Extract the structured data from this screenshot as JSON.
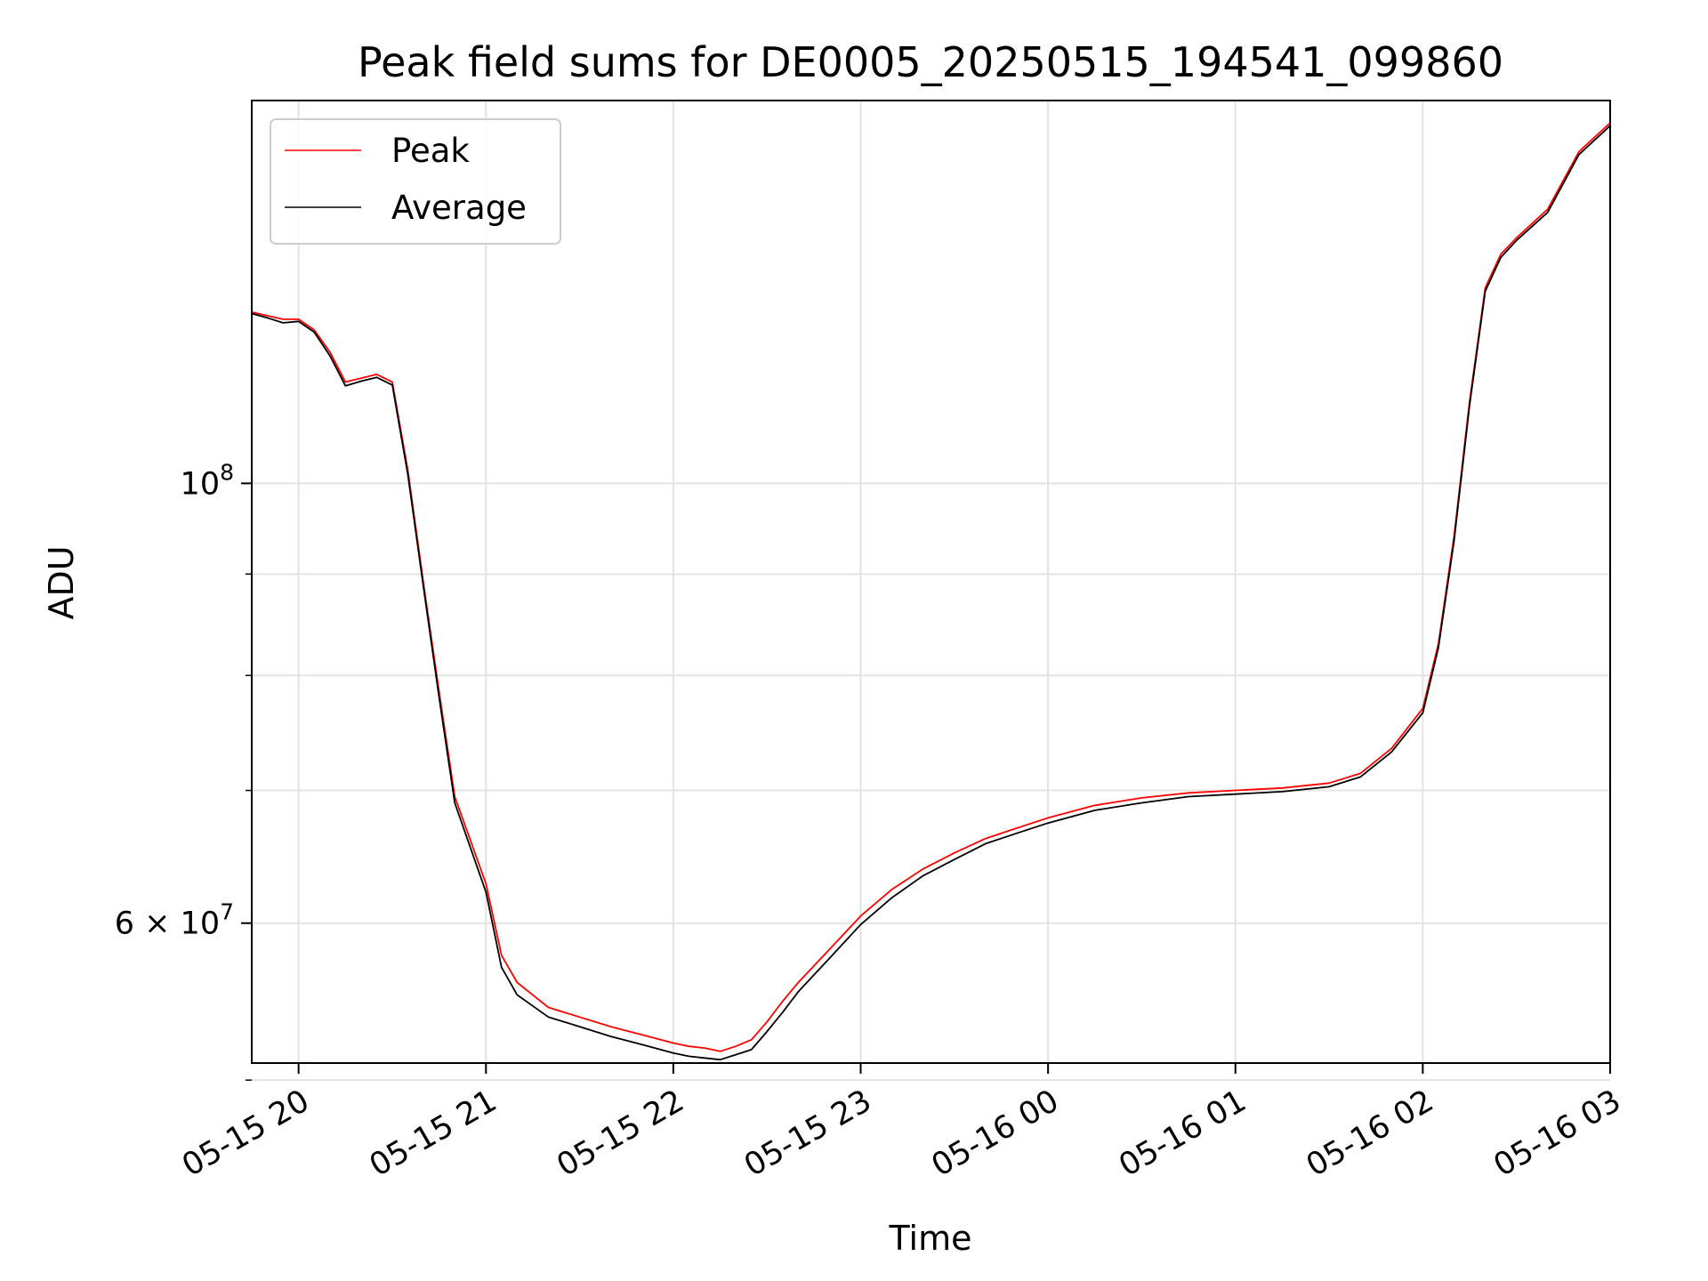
{
  "chart_data": {
    "type": "line",
    "title": "Peak field sums for DE0005_20250515_194541_099860",
    "xlabel": "Time",
    "ylabel": "ADU",
    "y_scale": "log",
    "xlim": [
      "2025-05-15 19:45",
      "2025-05-16 03:00"
    ],
    "ylim": [
      51000000.0,
      156000000.0
    ],
    "grid": true,
    "legend_position": "top-left",
    "x_ticks": [
      {
        "value": "2025-05-15 20:00",
        "label": "05-15 20"
      },
      {
        "value": "2025-05-15 21:00",
        "label": "05-15 21"
      },
      {
        "value": "2025-05-15 22:00",
        "label": "05-15 22"
      },
      {
        "value": "2025-05-15 23:00",
        "label": "05-15 23"
      },
      {
        "value": "2025-05-16 00:00",
        "label": "05-16 00"
      },
      {
        "value": "2025-05-16 01:00",
        "label": "05-16 01"
      },
      {
        "value": "2025-05-16 02:00",
        "label": "05-16 02"
      },
      {
        "value": "2025-05-16 03:00",
        "label": "05-16 03"
      }
    ],
    "y_major_ticks": [
      {
        "value": 100000000,
        "label_base": "10",
        "label_exp": "8"
      },
      {
        "value": 60000000,
        "label_base": "6 × 10",
        "label_exp": "7"
      }
    ],
    "y_minor_ticks": [
      50000000,
      70000000,
      80000000,
      90000000
    ],
    "series": [
      {
        "name": "Peak",
        "color": "#ff0000",
        "x": [
          "2025-05-15 19:45",
          "2025-05-15 19:50",
          "2025-05-15 19:55",
          "2025-05-15 20:00",
          "2025-05-15 20:05",
          "2025-05-15 20:10",
          "2025-05-15 20:15",
          "2025-05-15 20:20",
          "2025-05-15 20:25",
          "2025-05-15 20:30",
          "2025-05-15 20:35",
          "2025-05-15 20:40",
          "2025-05-15 20:45",
          "2025-05-15 20:50",
          "2025-05-15 21:00",
          "2025-05-15 21:05",
          "2025-05-15 21:10",
          "2025-05-15 21:15",
          "2025-05-15 21:20",
          "2025-05-15 21:30",
          "2025-05-15 21:40",
          "2025-05-15 21:50",
          "2025-05-15 22:00",
          "2025-05-15 22:05",
          "2025-05-15 22:10",
          "2025-05-15 22:15",
          "2025-05-15 22:20",
          "2025-05-15 22:25",
          "2025-05-15 22:30",
          "2025-05-15 22:35",
          "2025-05-15 22:40",
          "2025-05-15 22:50",
          "2025-05-15 23:00",
          "2025-05-15 23:10",
          "2025-05-15 23:20",
          "2025-05-15 23:30",
          "2025-05-15 23:40",
          "2025-05-15 23:50",
          "2025-05-16 00:00",
          "2025-05-16 00:15",
          "2025-05-16 00:30",
          "2025-05-16 00:45",
          "2025-05-16 01:00",
          "2025-05-16 01:15",
          "2025-05-16 01:30",
          "2025-05-16 01:40",
          "2025-05-16 01:50",
          "2025-05-16 02:00",
          "2025-05-16 02:05",
          "2025-05-16 02:10",
          "2025-05-16 02:15",
          "2025-05-16 02:20",
          "2025-05-16 02:25",
          "2025-05-16 02:30",
          "2025-05-16 02:40",
          "2025-05-16 02:50",
          "2025-05-16 03:00"
        ],
        "y": [
          122000000.0,
          121500000.0,
          121000000.0,
          121000000.0,
          119500000.0,
          116500000.0,
          112500000.0,
          113000000.0,
          113500000.0,
          112500000.0,
          101500000.0,
          89000000.0,
          78500000.0,
          69500000.0,
          62800000.0,
          57800000.0,
          56000000.0,
          55200000.0,
          54400000.0,
          53800000.0,
          53200000.0,
          52700000.0,
          52200000.0,
          52000000.0,
          51900000.0,
          51700000.0,
          52000000.0,
          52400000.0,
          53500000.0,
          54800000.0,
          56000000.0,
          58200000.0,
          60500000.0,
          62400000.0,
          63900000.0,
          65100000.0,
          66200000.0,
          67000000.0,
          67800000.0,
          68800000.0,
          69400000.0,
          69800000.0,
          70000000.0,
          70200000.0,
          70600000.0,
          71400000.0,
          73500000.0,
          77000000.0,
          83000000.0,
          94000000.0,
          110000000.0,
          125500000.0,
          130500000.0,
          133000000.0,
          137500000.0,
          147000000.0,
          152000000.0
        ]
      },
      {
        "name": "Average",
        "color": "#000000",
        "x": [
          "2025-05-15 19:45",
          "2025-05-15 19:50",
          "2025-05-15 19:55",
          "2025-05-15 20:00",
          "2025-05-15 20:05",
          "2025-05-15 20:10",
          "2025-05-15 20:15",
          "2025-05-15 20:20",
          "2025-05-15 20:25",
          "2025-05-15 20:30",
          "2025-05-15 20:35",
          "2025-05-15 20:40",
          "2025-05-15 20:45",
          "2025-05-15 20:50",
          "2025-05-15 21:00",
          "2025-05-15 21:05",
          "2025-05-15 21:10",
          "2025-05-15 21:15",
          "2025-05-15 21:20",
          "2025-05-15 21:30",
          "2025-05-15 21:40",
          "2025-05-15 21:50",
          "2025-05-15 22:00",
          "2025-05-15 22:05",
          "2025-05-15 22:10",
          "2025-05-15 22:15",
          "2025-05-15 22:20",
          "2025-05-15 22:25",
          "2025-05-15 22:30",
          "2025-05-15 22:35",
          "2025-05-15 22:40",
          "2025-05-15 22:50",
          "2025-05-15 23:00",
          "2025-05-15 23:10",
          "2025-05-15 23:20",
          "2025-05-15 23:30",
          "2025-05-15 23:40",
          "2025-05-15 23:50",
          "2025-05-16 00:00",
          "2025-05-16 00:15",
          "2025-05-16 00:30",
          "2025-05-16 00:45",
          "2025-05-16 01:00",
          "2025-05-16 01:15",
          "2025-05-16 01:30",
          "2025-05-16 01:40",
          "2025-05-16 01:50",
          "2025-05-16 02:00",
          "2025-05-16 02:05",
          "2025-05-16 02:10",
          "2025-05-16 02:15",
          "2025-05-16 02:20",
          "2025-05-16 02:25",
          "2025-05-16 02:30",
          "2025-05-16 02:40",
          "2025-05-16 02:50",
          "2025-05-16 03:00"
        ],
        "y": [
          121800000.0,
          121200000.0,
          120500000.0,
          120700000.0,
          119200000.0,
          116000000.0,
          112000000.0,
          112600000.0,
          113100000.0,
          112100000.0,
          101000000.0,
          88600000.0,
          78000000.0,
          69000000.0,
          62200000.0,
          57000000.0,
          55200000.0,
          54500000.0,
          53800000.0,
          53200000.0,
          52600000.0,
          52100000.0,
          51600000.0,
          51400000.0,
          51300000.0,
          51200000.0,
          51500000.0,
          51800000.0,
          52900000.0,
          54100000.0,
          55400000.0,
          57600000.0,
          59900000.0,
          61800000.0,
          63400000.0,
          64600000.0,
          65800000.0,
          66600000.0,
          67400000.0,
          68400000.0,
          69000000.0,
          69500000.0,
          69700000.0,
          69900000.0,
          70300000.0,
          71100000.0,
          73200000.0,
          76600000.0,
          82600000.0,
          93500000.0,
          109500000.0,
          125000000.0,
          130000000.0,
          132600000.0,
          137000000.0,
          146500000.0,
          151500000.0
        ]
      }
    ]
  }
}
